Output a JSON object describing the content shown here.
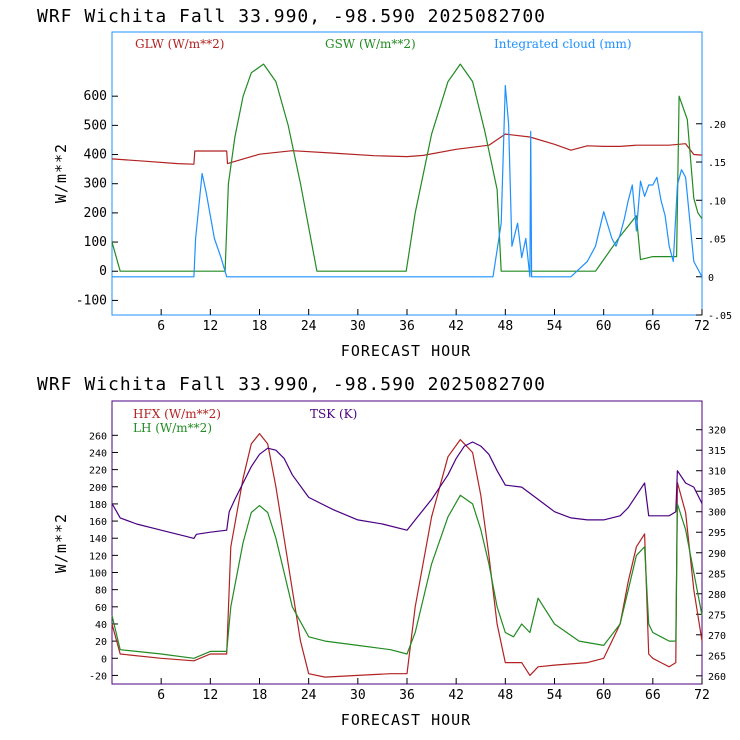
{
  "header_top": "WRF  Wichita Fall  33.990, -98.590  2025082700",
  "header_bottom": "WRF  Wichita Fall  33.990, -98.590  2025082700",
  "chart_data": [
    {
      "type": "line",
      "xlabel": "FORECAST HOUR",
      "ylabel": "W/m**2",
      "xlim": [
        0,
        72
      ],
      "ylim": [
        -150,
        820
      ],
      "y2lim": [
        -0.05,
        0.32
      ],
      "xticks": [
        6,
        12,
        18,
        24,
        30,
        36,
        42,
        48,
        54,
        60,
        66,
        72
      ],
      "yticks": [
        -100,
        0,
        100,
        200,
        300,
        400,
        500,
        600
      ],
      "y2ticks": [
        -0.05,
        0,
        0.05,
        0.1,
        0.15,
        0.2
      ],
      "y2ticklabels": [
        "-.05",
        "0",
        ".05",
        ".10",
        ".15",
        ".20"
      ],
      "legend": [
        {
          "name": "GLW (W/m**2)",
          "color": "#b22222"
        },
        {
          "name": "GSW (W/m**2)",
          "color": "#228b22"
        },
        {
          "name": "Integrated cloud (mm)",
          "color": "#1e90ff"
        }
      ],
      "series": [
        {
          "name": "GLW (W/m**2)",
          "axis": "left",
          "color": "#b22222",
          "x": [
            0,
            4,
            8,
            10,
            10.1,
            14,
            14.1,
            18,
            22,
            27,
            32,
            36,
            38,
            42,
            46,
            48,
            51,
            54,
            56,
            58,
            60,
            62,
            64,
            66,
            68,
            70,
            71,
            72
          ],
          "y": [
            385,
            377,
            369,
            367,
            412,
            412,
            369,
            401,
            413,
            405,
            396,
            393,
            397,
            418,
            432,
            470,
            460,
            435,
            415,
            430,
            428,
            428,
            432,
            432,
            432,
            437,
            400,
            398
          ]
        },
        {
          "name": "GSW (W/m**2)",
          "axis": "left",
          "color": "#228b22",
          "x": [
            0,
            1,
            13.8,
            14.2,
            15,
            16,
            17,
            18.5,
            20,
            21.5,
            23,
            25,
            35.9,
            37,
            39,
            41,
            42.5,
            44,
            45.5,
            47,
            47.5,
            48.5,
            59,
            59.5,
            62,
            64,
            64.5,
            66,
            68.9,
            69.2,
            70.2,
            71,
            71.5,
            72
          ],
          "y": [
            100,
            0,
            0,
            300,
            460,
            600,
            680,
            710,
            650,
            500,
            300,
            0,
            0,
            200,
            470,
            650,
            710,
            650,
            480,
            280,
            0,
            0,
            0,
            20,
            120,
            190,
            40,
            50,
            50,
            600,
            520,
            250,
            200,
            180
          ]
        },
        {
          "name": "Integrated cloud (mm)",
          "axis": "right",
          "color": "#1e90ff",
          "x": [
            0,
            10,
            10.2,
            11,
            11.5,
            12.5,
            13.3,
            14,
            15,
            46.5,
            47.5,
            48,
            48.4,
            48.8,
            49.5,
            50,
            50.5,
            51,
            51.1,
            51.2,
            51.3,
            52,
            56,
            57,
            58,
            59,
            60,
            61,
            61.5,
            62,
            62.5,
            63,
            63.5,
            64,
            64.5,
            65,
            65.5,
            66,
            66.5,
            67,
            67.5,
            68,
            68.5,
            69,
            69.5,
            70,
            71,
            71.5,
            72
          ],
          "y": [
            0,
            0,
            0.05,
            0.135,
            0.11,
            0.05,
            0.025,
            0,
            0,
            0,
            0.07,
            0.25,
            0.2,
            0.04,
            0.07,
            0.025,
            0.05,
            0,
            0.19,
            0,
            0,
            0,
            0,
            0.01,
            0.02,
            0.04,
            0.085,
            0.05,
            0.04,
            0.055,
            0.075,
            0.1,
            0.12,
            0.06,
            0.125,
            0.105,
            0.12,
            0.12,
            0.13,
            0.1,
            0.08,
            0.04,
            0.02,
            0.12,
            0.14,
            0.13,
            0.02,
            0.01,
            0
          ]
        }
      ]
    },
    {
      "type": "line",
      "xlabel": "FORECAST HOUR",
      "ylabel": "W/m**2",
      "xlim": [
        0,
        72
      ],
      "ylim": [
        -30,
        300
      ],
      "y2lim": [
        258,
        327
      ],
      "xticks": [
        6,
        12,
        18,
        24,
        30,
        36,
        42,
        48,
        54,
        60,
        66,
        72
      ],
      "yticks": [
        -20,
        0,
        20,
        40,
        60,
        80,
        100,
        120,
        140,
        160,
        180,
        200,
        220,
        240,
        260
      ],
      "y2ticks": [
        260,
        265,
        270,
        275,
        280,
        285,
        290,
        295,
        300,
        305,
        310,
        315,
        320
      ],
      "legend": [
        {
          "name": "HFX (W/m**2)",
          "color": "#b22222"
        },
        {
          "name": "LH  (W/m**2)",
          "color": "#228b22"
        },
        {
          "name": "TSK (K)",
          "color": "#4b0082"
        }
      ],
      "series": [
        {
          "name": "HFX (W/m**2)",
          "axis": "left",
          "color": "#b22222",
          "x": [
            0,
            1,
            6,
            10,
            12,
            14,
            14.5,
            16,
            17,
            18,
            19,
            20,
            21,
            22,
            23,
            24,
            26,
            30,
            34,
            36,
            37,
            39,
            41,
            42.5,
            44,
            45,
            46,
            47,
            48,
            50,
            51,
            52,
            54,
            58,
            60,
            62,
            63,
            64,
            65,
            65.5,
            66,
            67,
            68,
            68.8,
            69,
            70,
            71,
            72
          ],
          "y": [
            40,
            5,
            0,
            -3,
            5,
            5,
            130,
            210,
            250,
            262,
            250,
            200,
            140,
            80,
            20,
            -18,
            -22,
            -20,
            -18,
            -18,
            60,
            165,
            235,
            255,
            240,
            190,
            120,
            40,
            -5,
            -5,
            -20,
            -10,
            -8,
            -5,
            0,
            40,
            90,
            130,
            145,
            5,
            0,
            -5,
            -10,
            -5,
            205,
            170,
            80,
            20
          ]
        },
        {
          "name": "LH  (W/m**2)",
          "axis": "left",
          "color": "#228b22",
          "x": [
            0,
            1,
            6,
            10,
            12,
            14,
            14.5,
            16,
            17,
            18,
            19,
            20,
            21,
            22,
            24,
            26,
            30,
            34,
            36,
            37,
            39,
            41,
            42.5,
            44,
            45,
            46,
            47,
            48,
            49,
            50,
            51,
            52,
            54,
            57,
            60,
            62,
            63,
            64,
            65,
            65.5,
            66,
            67,
            68,
            68.8,
            69,
            70,
            71,
            72
          ],
          "y": [
            50,
            10,
            5,
            0,
            8,
            8,
            60,
            135,
            170,
            178,
            170,
            140,
            100,
            60,
            25,
            20,
            15,
            10,
            5,
            30,
            110,
            165,
            190,
            180,
            150,
            110,
            60,
            30,
            25,
            40,
            30,
            70,
            40,
            20,
            15,
            40,
            80,
            120,
            130,
            40,
            30,
            25,
            20,
            20,
            180,
            150,
            100,
            50
          ]
        },
        {
          "name": "TSK (K)",
          "axis": "right",
          "color": "#4b0082",
          "x": [
            0,
            1,
            3,
            6,
            9,
            10,
            10.3,
            12,
            14,
            14.3,
            15,
            16,
            17,
            18,
            19,
            20,
            21,
            22,
            24,
            27,
            30,
            33,
            36,
            37,
            39,
            41,
            42,
            43,
            44,
            45,
            46,
            47,
            48,
            50,
            52,
            54,
            56,
            58,
            60,
            62,
            63,
            64,
            65,
            65.5,
            68,
            68.8,
            69,
            70,
            71,
            72
          ],
          "y": [
            302,
            298.5,
            297,
            295.5,
            294,
            293.5,
            294.5,
            295,
            295.5,
            300,
            303,
            307,
            311,
            314,
            315.5,
            315,
            313,
            309,
            303.5,
            300.5,
            298,
            297,
            295.5,
            298,
            303,
            309,
            313,
            316,
            317,
            316,
            314,
            310,
            306.5,
            306,
            303,
            300,
            298.5,
            298,
            298,
            299,
            301,
            304,
            307,
            299,
            299,
            300,
            310,
            307,
            306,
            302
          ]
        }
      ]
    }
  ]
}
